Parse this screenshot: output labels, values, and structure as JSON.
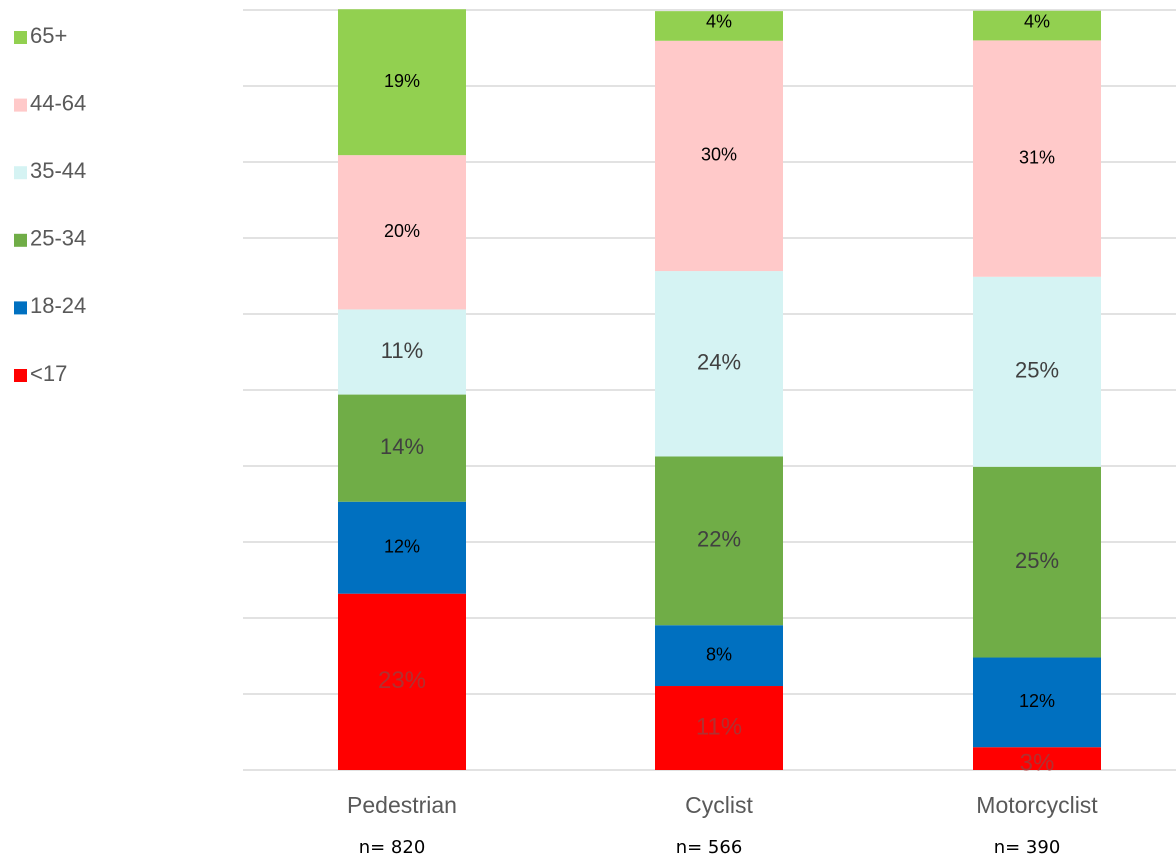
{
  "chart_data": {
    "type": "stacked_bar",
    "categories": [
      "Pedestrian",
      "Cyclist",
      "Motorcyclist"
    ],
    "sample_labels": [
      "n= 820",
      "n= 566",
      "n= 390"
    ],
    "series": [
      {
        "name": "<17",
        "color": "#ff0000",
        "values": [
          23.2,
          11.05,
          3.0
        ],
        "value_labels": [
          "23%",
          "11%",
          "3%"
        ]
      },
      {
        "name": "18-24",
        "color": "#0070c0",
        "values": [
          12.1,
          8.0,
          11.8
        ],
        "value_labels": [
          "12%",
          "8%",
          "12%"
        ]
      },
      {
        "name": "25-34",
        "color": "#70ad47",
        "values": [
          14.1,
          22.2,
          25.1
        ],
        "value_labels": [
          "14%",
          "22%",
          "25%"
        ]
      },
      {
        "name": "35-44",
        "color": "#d5f3f3",
        "values": [
          11.2,
          24.4,
          25.0
        ],
        "value_labels": [
          "11%",
          "24%",
          "25%"
        ]
      },
      {
        "name": "44-64",
        "color": "#ffc9c9",
        "values": [
          20.3,
          30.3,
          31.1
        ],
        "value_labels": [
          "20%",
          "30%",
          "31%"
        ]
      },
      {
        "name": "65+",
        "color": "#92d050",
        "values": [
          19.2,
          3.9,
          3.9
        ],
        "value_labels": [
          "19%",
          "4%",
          "4%"
        ]
      }
    ],
    "ylim": [
      0,
      100
    ],
    "yticks": [
      0,
      10,
      20,
      30,
      40,
      50,
      60,
      70,
      80,
      90,
      100
    ],
    "grid": true,
    "ytick_labels": false,
    "legend": "left"
  }
}
